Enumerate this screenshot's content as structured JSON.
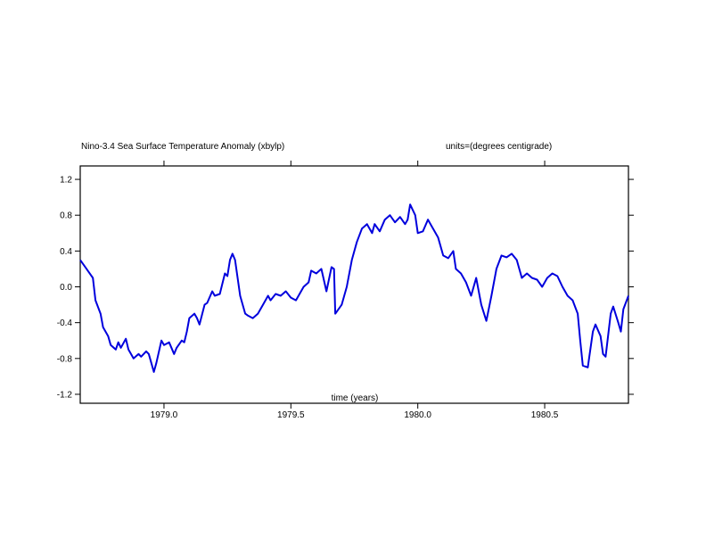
{
  "chart_data": {
    "type": "line",
    "title": "Nino-3.4 Sea Surface Temperature Anomaly (xbylp)",
    "units_label": "units=(degrees centigrade)",
    "xlabel": "time (years)",
    "ylabel": "",
    "xlim": [
      1978.67,
      1980.83
    ],
    "ylim": [
      -1.3,
      1.35
    ],
    "x_ticks": [
      1979.0,
      1979.5,
      1980.0,
      1980.5
    ],
    "x_tick_labels": [
      "1979.0",
      "1979.5",
      "1980.0",
      "1980.5"
    ],
    "y_ticks": [
      1.2,
      0.8,
      0.4,
      0.0,
      -0.4,
      -0.8,
      -1.2
    ],
    "y_tick_labels": [
      "1.2",
      "0.8",
      "0.4",
      "0.0",
      "-0.4",
      "-0.8",
      "-1.2"
    ],
    "grid": false,
    "series": [
      {
        "color": "#0000dd",
        "x": [
          1978.67,
          1978.69,
          1978.7,
          1978.72,
          1978.73,
          1978.75,
          1978.76,
          1978.78,
          1978.79,
          1978.81,
          1978.82,
          1978.83,
          1978.85,
          1978.86,
          1978.88,
          1978.9,
          1978.91,
          1978.93,
          1978.94,
          1978.96,
          1978.97,
          1978.99,
          1979.0,
          1979.02,
          1979.04,
          1979.05,
          1979.07,
          1979.08,
          1979.09,
          1979.1,
          1979.12,
          1979.13,
          1979.14,
          1979.16,
          1979.17,
          1979.19,
          1979.2,
          1979.22,
          1979.24,
          1979.25,
          1979.26,
          1979.27,
          1979.28,
          1979.3,
          1979.32,
          1979.33,
          1979.35,
          1979.37,
          1979.39,
          1979.41,
          1979.42,
          1979.44,
          1979.46,
          1979.48,
          1979.5,
          1979.52,
          1979.55,
          1979.57,
          1979.58,
          1979.6,
          1979.62,
          1979.64,
          1979.66,
          1979.67,
          1979.675,
          1979.68,
          1979.7,
          1979.72,
          1979.74,
          1979.76,
          1979.78,
          1979.8,
          1979.82,
          1979.83,
          1979.85,
          1979.87,
          1979.89,
          1979.91,
          1979.93,
          1979.95,
          1979.96,
          1979.97,
          1979.99,
          1980.0,
          1980.02,
          1980.04,
          1980.06,
          1980.08,
          1980.1,
          1980.12,
          1980.14,
          1980.15,
          1980.17,
          1980.19,
          1980.21,
          1980.23,
          1980.25,
          1980.27,
          1980.29,
          1980.31,
          1980.33,
          1980.35,
          1980.37,
          1980.39,
          1980.41,
          1980.43,
          1980.45,
          1980.47,
          1980.49,
          1980.51,
          1980.53,
          1980.55,
          1980.57,
          1980.59,
          1980.61,
          1980.63,
          1980.64,
          1980.65,
          1980.67,
          1980.69,
          1980.7,
          1980.72,
          1980.73,
          1980.74,
          1980.76,
          1980.77,
          1980.79,
          1980.8,
          1980.81,
          1980.83
        ],
        "y": [
          0.3,
          0.22,
          0.18,
          0.1,
          -0.15,
          -0.3,
          -0.45,
          -0.55,
          -0.65,
          -0.7,
          -0.62,
          -0.68,
          -0.58,
          -0.7,
          -0.8,
          -0.75,
          -0.78,
          -0.72,
          -0.75,
          -0.95,
          -0.85,
          -0.6,
          -0.65,
          -0.62,
          -0.75,
          -0.68,
          -0.6,
          -0.62,
          -0.5,
          -0.35,
          -0.3,
          -0.35,
          -0.42,
          -0.2,
          -0.18,
          -0.05,
          -0.1,
          -0.08,
          0.15,
          0.12,
          0.3,
          0.37,
          0.3,
          -0.1,
          -0.3,
          -0.32,
          -0.35,
          -0.3,
          -0.2,
          -0.1,
          -0.15,
          -0.08,
          -0.1,
          -0.05,
          -0.12,
          -0.15,
          0.0,
          0.05,
          0.18,
          0.15,
          0.2,
          -0.05,
          0.22,
          0.2,
          -0.3,
          -0.28,
          -0.2,
          0.0,
          0.3,
          0.5,
          0.65,
          0.7,
          0.6,
          0.7,
          0.62,
          0.75,
          0.8,
          0.72,
          0.78,
          0.7,
          0.75,
          0.92,
          0.8,
          0.6,
          0.62,
          0.75,
          0.65,
          0.55,
          0.35,
          0.32,
          0.4,
          0.2,
          0.15,
          0.05,
          -0.1,
          0.1,
          -0.2,
          -0.38,
          -0.1,
          0.2,
          0.35,
          0.33,
          0.37,
          0.3,
          0.1,
          0.15,
          0.1,
          0.08,
          0.0,
          0.1,
          0.15,
          0.12,
          0.0,
          -0.1,
          -0.15,
          -0.3,
          -0.6,
          -0.88,
          -0.9,
          -0.5,
          -0.42,
          -0.55,
          -0.75,
          -0.78,
          -0.3,
          -0.22,
          -0.4,
          -0.5,
          -0.25,
          -0.1
        ]
      }
    ]
  }
}
